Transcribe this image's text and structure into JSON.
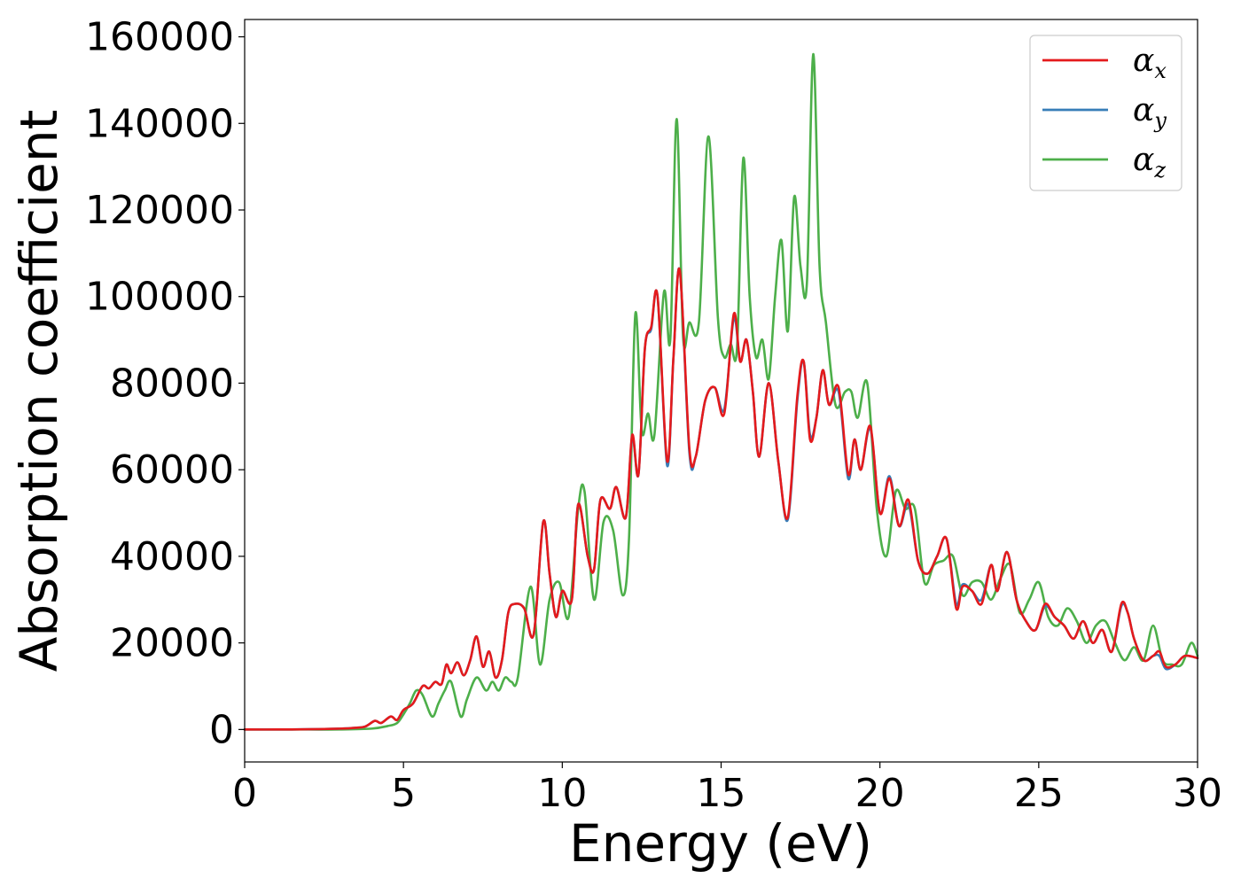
{
  "chart_data": {
    "type": "line",
    "title": "",
    "xlabel": "Energy (eV)",
    "ylabel": "Absorption coefficient",
    "xlim": [
      0,
      30
    ],
    "ylim": [
      -7500,
      164000
    ],
    "xticks": [
      0,
      5,
      10,
      15,
      20,
      25,
      30
    ],
    "yticks": [
      0,
      20000,
      40000,
      60000,
      80000,
      100000,
      120000,
      140000,
      160000
    ],
    "grid": false,
    "legend_position": "top-right",
    "series": [
      {
        "name": "α",
        "subscript": "x",
        "color": "#e41a1c",
        "x": [
          0,
          1,
          2,
          3,
          3.5,
          3.8,
          4.1,
          4.3,
          4.6,
          4.8,
          5.0,
          5.3,
          5.6,
          5.8,
          6.0,
          6.2,
          6.35,
          6.5,
          6.7,
          6.9,
          7.1,
          7.3,
          7.5,
          7.7,
          7.9,
          8.1,
          8.3,
          8.5,
          8.8,
          9.1,
          9.4,
          9.6,
          9.8,
          10.0,
          10.3,
          10.5,
          10.8,
          11.0,
          11.2,
          11.5,
          11.7,
          12.0,
          12.2,
          12.4,
          12.6,
          12.8,
          13.0,
          13.3,
          13.5,
          13.7,
          14.0,
          14.2,
          14.5,
          14.8,
          15.1,
          15.4,
          15.6,
          15.8,
          16.0,
          16.2,
          16.5,
          16.8,
          17.1,
          17.4,
          17.6,
          17.8,
          18.0,
          18.2,
          18.4,
          18.7,
          19.0,
          19.2,
          19.4,
          19.7,
          20.0,
          20.3,
          20.6,
          20.9,
          21.2,
          21.5,
          21.8,
          22.1,
          22.4,
          22.6,
          22.9,
          23.2,
          23.5,
          23.7,
          24.0,
          24.3,
          24.6,
          24.9,
          25.2,
          25.5,
          25.8,
          26.1,
          26.4,
          26.7,
          27.0,
          27.3,
          27.6,
          27.8,
          28.0,
          28.3,
          28.6,
          28.8,
          29.0,
          29.3,
          29.6,
          30.0
        ],
        "values": [
          0,
          0,
          50,
          200,
          400,
          700,
          2000,
          1500,
          3000,
          2200,
          4500,
          6000,
          10000,
          9500,
          11000,
          10500,
          15000,
          13000,
          15500,
          12500,
          16000,
          21500,
          14500,
          18000,
          12000,
          16000,
          27000,
          29000,
          28000,
          22000,
          48000,
          36000,
          26000,
          32000,
          30000,
          52000,
          40000,
          37000,
          53000,
          51000,
          56000,
          49000,
          68000,
          59000,
          88000,
          93000,
          100000,
          62000,
          86000,
          106000,
          65000,
          63000,
          76000,
          79000,
          73000,
          96000,
          85000,
          90000,
          78000,
          63000,
          80000,
          62000,
          49000,
          77000,
          85000,
          67000,
          72000,
          83000,
          75000,
          79000,
          59000,
          67000,
          60000,
          70000,
          50000,
          58000,
          47000,
          53000,
          39000,
          36000,
          40000,
          44000,
          28000,
          33000,
          32000,
          29000,
          38000,
          32000,
          41000,
          30000,
          25000,
          23000,
          29000,
          26000,
          24000,
          21000,
          25000,
          20000,
          23000,
          18000,
          29000,
          27000,
          21000,
          16000,
          17000,
          18000,
          14500,
          15000,
          17000,
          16500
        ]
      },
      {
        "name": "α",
        "subscript": "y",
        "color": "#377eb8",
        "x": [
          0,
          1,
          2,
          3,
          3.5,
          3.8,
          4.1,
          4.3,
          4.6,
          4.8,
          5.0,
          5.3,
          5.6,
          5.8,
          6.0,
          6.2,
          6.35,
          6.5,
          6.7,
          6.9,
          7.1,
          7.3,
          7.5,
          7.7,
          7.9,
          8.1,
          8.3,
          8.5,
          8.8,
          9.1,
          9.4,
          9.6,
          9.8,
          10.0,
          10.3,
          10.5,
          10.8,
          11.0,
          11.2,
          11.5,
          11.7,
          12.0,
          12.2,
          12.4,
          12.6,
          12.8,
          13.0,
          13.3,
          13.5,
          13.7,
          14.0,
          14.2,
          14.5,
          14.8,
          15.1,
          15.4,
          15.6,
          15.8,
          16.0,
          16.2,
          16.5,
          16.8,
          17.1,
          17.4,
          17.6,
          17.8,
          18.0,
          18.2,
          18.4,
          18.7,
          19.0,
          19.2,
          19.4,
          19.7,
          20.0,
          20.3,
          20.6,
          20.9,
          21.2,
          21.5,
          21.8,
          22.1,
          22.4,
          22.6,
          22.9,
          23.2,
          23.5,
          23.7,
          24.0,
          24.3,
          24.6,
          24.9,
          25.2,
          25.5,
          25.8,
          26.1,
          26.4,
          26.7,
          27.0,
          27.3,
          27.6,
          27.8,
          28.0,
          28.3,
          28.6,
          28.8,
          29.0,
          29.3,
          29.6,
          30.0
        ],
        "values": [
          0,
          0,
          50,
          200,
          400,
          700,
          2000,
          1500,
          3000,
          2200,
          4500,
          6000,
          10000,
          9500,
          11000,
          10500,
          15000,
          13000,
          15500,
          12500,
          16000,
          21500,
          14500,
          18000,
          12000,
          16000,
          27000,
          29000,
          28000,
          22000,
          48000,
          36000,
          26000,
          32000,
          30000,
          52000,
          40000,
          37000,
          53000,
          51000,
          56000,
          49000,
          67500,
          59000,
          88000,
          92500,
          100000,
          61000,
          86000,
          106000,
          64000,
          63000,
          76000,
          79000,
          74000,
          95000,
          85000,
          90000,
          78000,
          63000,
          80000,
          62000,
          48500,
          76000,
          85000,
          68000,
          72000,
          83000,
          75000,
          78000,
          58000,
          67000,
          60000,
          69500,
          50000,
          58500,
          47000,
          52000,
          39000,
          36000,
          40000,
          44000,
          29000,
          33500,
          32000,
          30000,
          38000,
          32000,
          41000,
          30000,
          25000,
          23000,
          28500,
          26000,
          24000,
          21000,
          25000,
          20000,
          23000,
          18000,
          28500,
          27000,
          21000,
          16000,
          17000,
          17000,
          14000,
          15000,
          17000,
          16500
        ]
      },
      {
        "name": "α",
        "subscript": "z",
        "color": "#4daf4a",
        "x": [
          0,
          1,
          2,
          3,
          4,
          4.5,
          4.8,
          5.0,
          5.2,
          5.4,
          5.6,
          5.9,
          6.1,
          6.3,
          6.5,
          6.8,
          7.0,
          7.3,
          7.6,
          7.8,
          8.0,
          8.2,
          8.4,
          8.6,
          9.0,
          9.3,
          9.6,
          9.9,
          10.2,
          10.5,
          10.7,
          11.0,
          11.3,
          11.6,
          11.9,
          12.1,
          12.3,
          12.5,
          12.7,
          12.9,
          13.2,
          13.4,
          13.6,
          13.8,
          14.0,
          14.3,
          14.6,
          14.9,
          15.1,
          15.3,
          15.5,
          15.7,
          15.9,
          16.1,
          16.3,
          16.5,
          16.7,
          16.9,
          17.1,
          17.3,
          17.5,
          17.7,
          17.9,
          18.1,
          18.3,
          18.6,
          18.9,
          19.1,
          19.3,
          19.6,
          19.9,
          20.2,
          20.5,
          20.8,
          21.1,
          21.4,
          21.7,
          22.0,
          22.3,
          22.6,
          22.9,
          23.2,
          23.5,
          23.8,
          24.1,
          24.4,
          24.7,
          25.0,
          25.3,
          25.6,
          25.9,
          26.2,
          26.5,
          26.8,
          27.1,
          27.4,
          27.7,
          28.0,
          28.3,
          28.6,
          28.9,
          29.2,
          29.5,
          29.8,
          30.0
        ],
        "values": [
          0,
          0,
          0,
          0,
          200,
          800,
          1500,
          3500,
          6000,
          9000,
          8000,
          3000,
          6000,
          9000,
          11000,
          3000,
          7000,
          12000,
          9000,
          11000,
          9000,
          12000,
          11000,
          12000,
          33000,
          15000,
          30000,
          34000,
          26000,
          51000,
          55000,
          30000,
          48000,
          46000,
          31000,
          44000,
          96000,
          69000,
          73000,
          68000,
          101000,
          90000,
          141000,
          91000,
          94000,
          94000,
          137000,
          95000,
          86000,
          89000,
          88000,
          132000,
          100000,
          86000,
          90000,
          81000,
          100000,
          113000,
          92000,
          123000,
          107000,
          103000,
          156000,
          107000,
          94000,
          75000,
          78000,
          78000,
          72000,
          80000,
          51000,
          40000,
          55000,
          51000,
          51000,
          34000,
          38000,
          39000,
          40000,
          31000,
          34000,
          34000,
          30000,
          35000,
          38000,
          27000,
          30000,
          34000,
          26000,
          24000,
          28000,
          25000,
          20000,
          24000,
          25000,
          20000,
          16000,
          19000,
          16000,
          24000,
          16000,
          15000,
          15000,
          20000,
          17000
        ]
      }
    ]
  }
}
